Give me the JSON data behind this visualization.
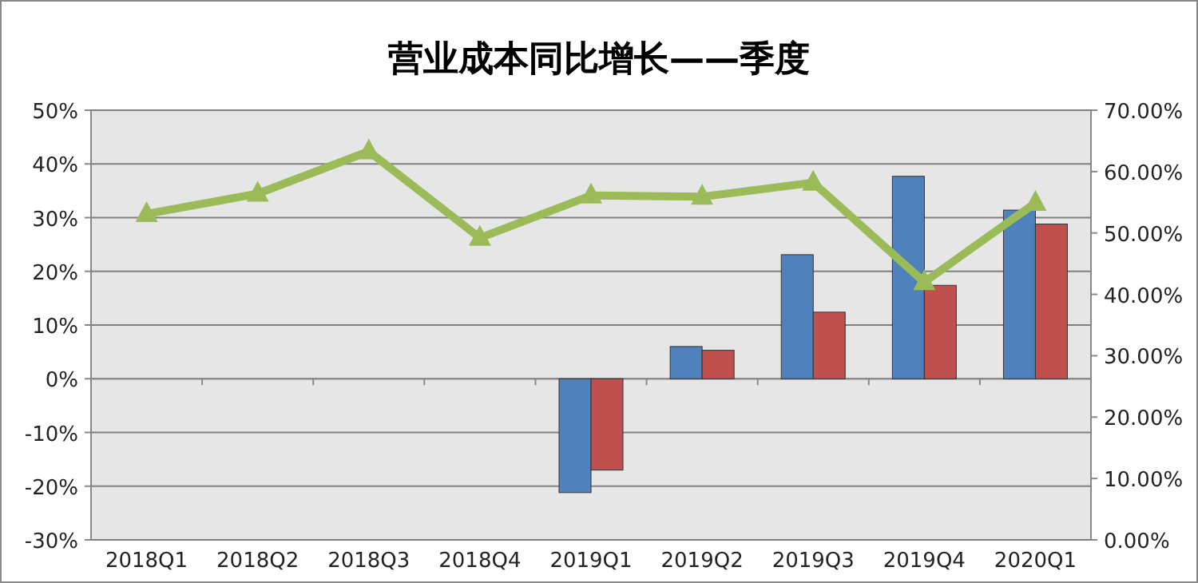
{
  "chart_data": {
    "type": "bar",
    "title": "营业成本同比增长——季度",
    "categories": [
      "2018Q1",
      "2018Q2",
      "2018Q3",
      "2018Q4",
      "2019Q1",
      "2019Q2",
      "2019Q3",
      "2019Q4",
      "2020Q1"
    ],
    "series": [
      {
        "color": "#4f81bd",
        "values": [
          null,
          null,
          null,
          null,
          -21.2,
          6.0,
          23.1,
          37.7,
          31.4
        ]
      },
      {
        "color": "#c0504d",
        "values": [
          null,
          null,
          null,
          null,
          -17.0,
          5.3,
          12.4,
          17.4,
          28.8
        ]
      },
      {
        "type": "line",
        "axis": "y2",
        "color": "#9bbb59",
        "marker": "triangle",
        "values": [
          53.1,
          56.4,
          63.3,
          49.2,
          56.1,
          55.9,
          58.2,
          42.0,
          54.9
        ]
      }
    ],
    "ylim": [
      -30,
      50
    ],
    "yticks": [
      {
        "value": -30,
        "label": "-30%"
      },
      {
        "value": -20,
        "label": "-20%"
      },
      {
        "value": -10,
        "label": "-10%"
      },
      {
        "value": 0,
        "label": "0%"
      },
      {
        "value": 10,
        "label": "10%"
      },
      {
        "value": 20,
        "label": "20%"
      },
      {
        "value": 30,
        "label": "30%"
      },
      {
        "value": 40,
        "label": "40%"
      },
      {
        "value": 50,
        "label": "50%"
      }
    ],
    "y2lim": [
      0,
      70
    ],
    "y2ticks": [
      {
        "value": 0,
        "label": "0.00%"
      },
      {
        "value": 10,
        "label": "10.00%"
      },
      {
        "value": 20,
        "label": "20.00%"
      },
      {
        "value": 30,
        "label": "30.00%"
      },
      {
        "value": 40,
        "label": "40.00%"
      },
      {
        "value": 50,
        "label": "50.00%"
      },
      {
        "value": 60,
        "label": "60.00%"
      },
      {
        "value": 70,
        "label": "70.00%"
      }
    ],
    "grid": "y"
  }
}
